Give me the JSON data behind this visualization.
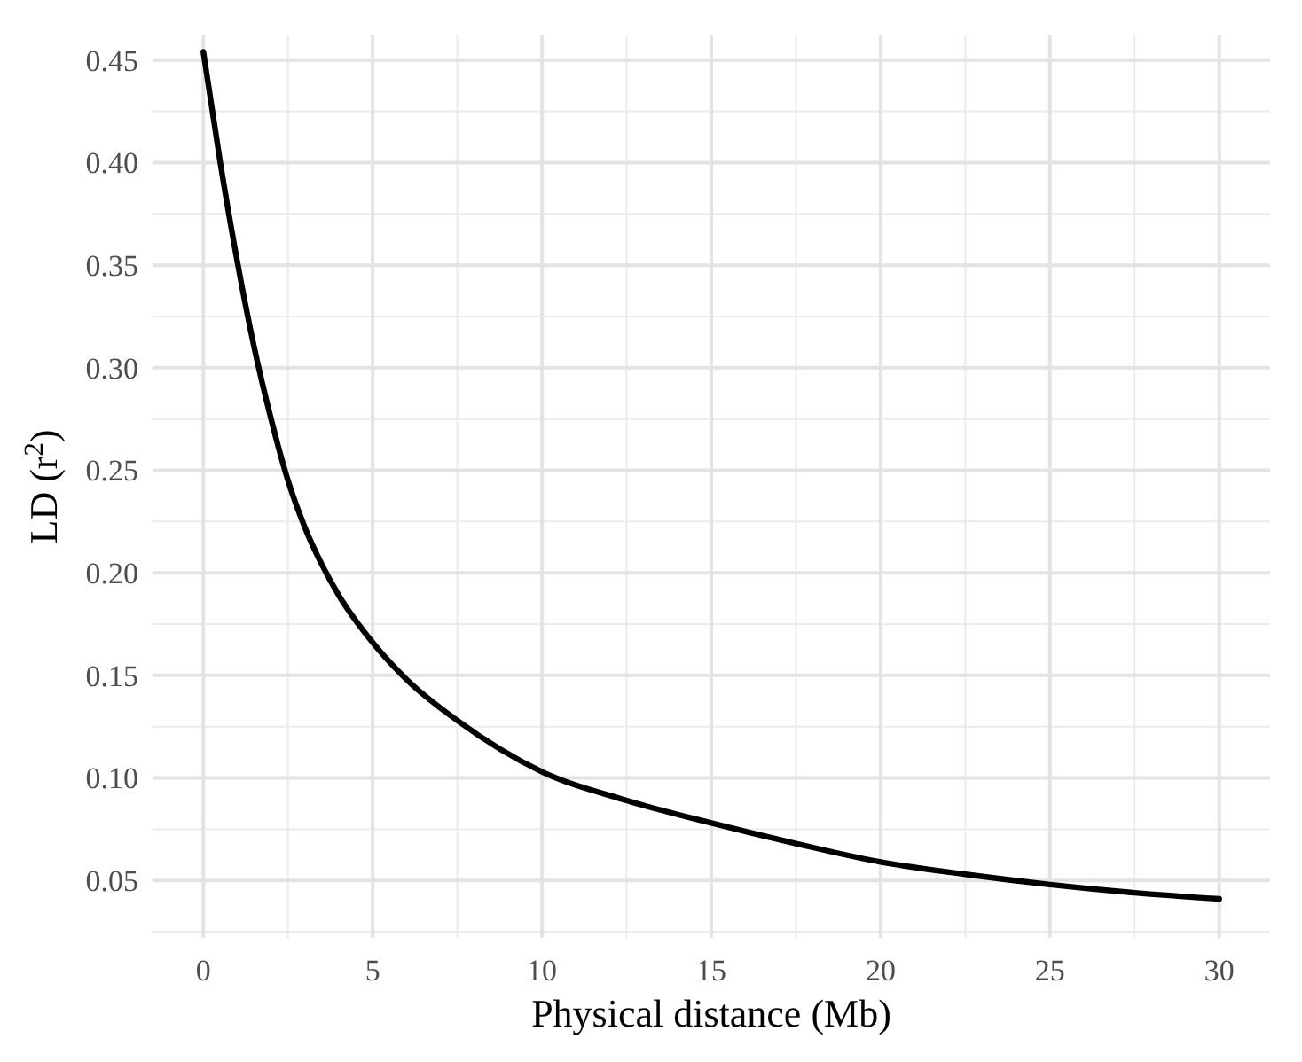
{
  "chart_data": {
    "type": "line",
    "xlabel": "Physical distance (Mb)",
    "ylabel": "LD (r$^{2}$)",
    "x": [
      0,
      0.5,
      1,
      1.5,
      2,
      2.5,
      3,
      3.5,
      4,
      5,
      6,
      7.5,
      10,
      12.5,
      15,
      17.5,
      20,
      22.5,
      25,
      27.5,
      30
    ],
    "series": [
      {
        "color": "#000000",
        "values": [
          0.454,
          0.4,
          0.352,
          0.31,
          0.275,
          0.245,
          0.222,
          0.204,
          0.189,
          0.166,
          0.148,
          0.128,
          0.103,
          0.089,
          0.078,
          0.068,
          0.059,
          0.053,
          0.048,
          0.044,
          0.041
        ]
      }
    ],
    "xlim": [
      -1.5,
      31.5
    ],
    "xticks": [
      0,
      5,
      10,
      15,
      20,
      25,
      30
    ],
    "ylim": [
      0.022,
      0.462
    ],
    "yticks": [
      {
        "value": 0.05,
        "label": "0.05"
      },
      {
        "value": 0.1,
        "label": "0.10"
      },
      {
        "value": 0.15,
        "label": "0.15"
      },
      {
        "value": 0.2,
        "label": "0.20"
      },
      {
        "value": 0.25,
        "label": "0.25"
      },
      {
        "value": 0.3,
        "label": "0.30"
      },
      {
        "value": 0.35,
        "label": "0.35"
      },
      {
        "value": 0.4,
        "label": "0.40"
      },
      {
        "value": 0.45,
        "label": "0.45"
      }
    ],
    "grid": true,
    "marker": "none",
    "line_style": "solid"
  }
}
